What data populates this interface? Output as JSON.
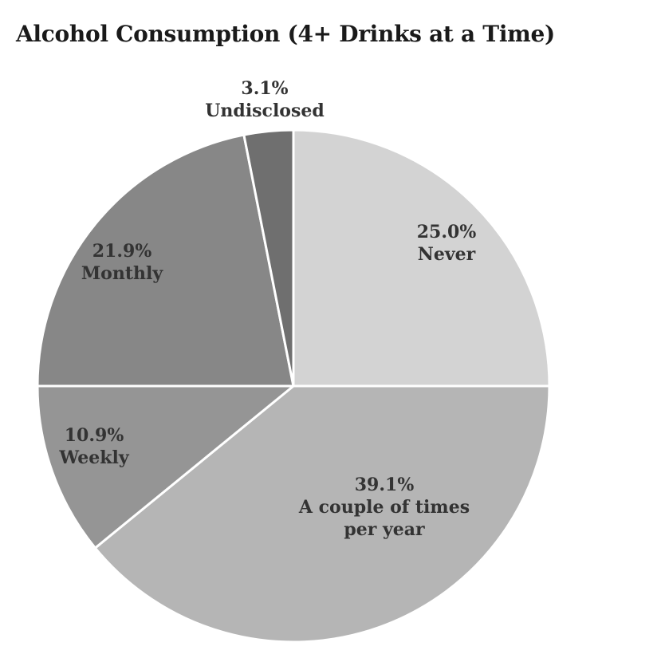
{
  "chart_data": {
    "type": "pie",
    "title": "Alcohol Consumption (4+ Drinks at a Time)",
    "slices": [
      {
        "label": "Never",
        "value": 25.0,
        "display": "25.0%",
        "label_lines": [
          "Never"
        ],
        "color": "#d3d3d3"
      },
      {
        "label": "A couple of times per year",
        "value": 39.1,
        "display": "39.1%",
        "label_lines": [
          "A couple of times",
          "per year"
        ],
        "color": "#b5b5b5"
      },
      {
        "label": "Weekly",
        "value": 10.9,
        "display": "10.9%",
        "label_lines": [
          "Weekly"
        ],
        "color": "#959595"
      },
      {
        "label": "Monthly",
        "value": 21.9,
        "display": "21.9%",
        "label_lines": [
          "Monthly"
        ],
        "color": "#878787"
      },
      {
        "label": "Undisclosed",
        "value": 3.1,
        "display": "3.1%",
        "label_lines": [
          "Undisclosed"
        ],
        "color": "#6f6f6f"
      }
    ],
    "start_angle": "12 o'clock",
    "direction": "clockwise",
    "legend": "none"
  }
}
